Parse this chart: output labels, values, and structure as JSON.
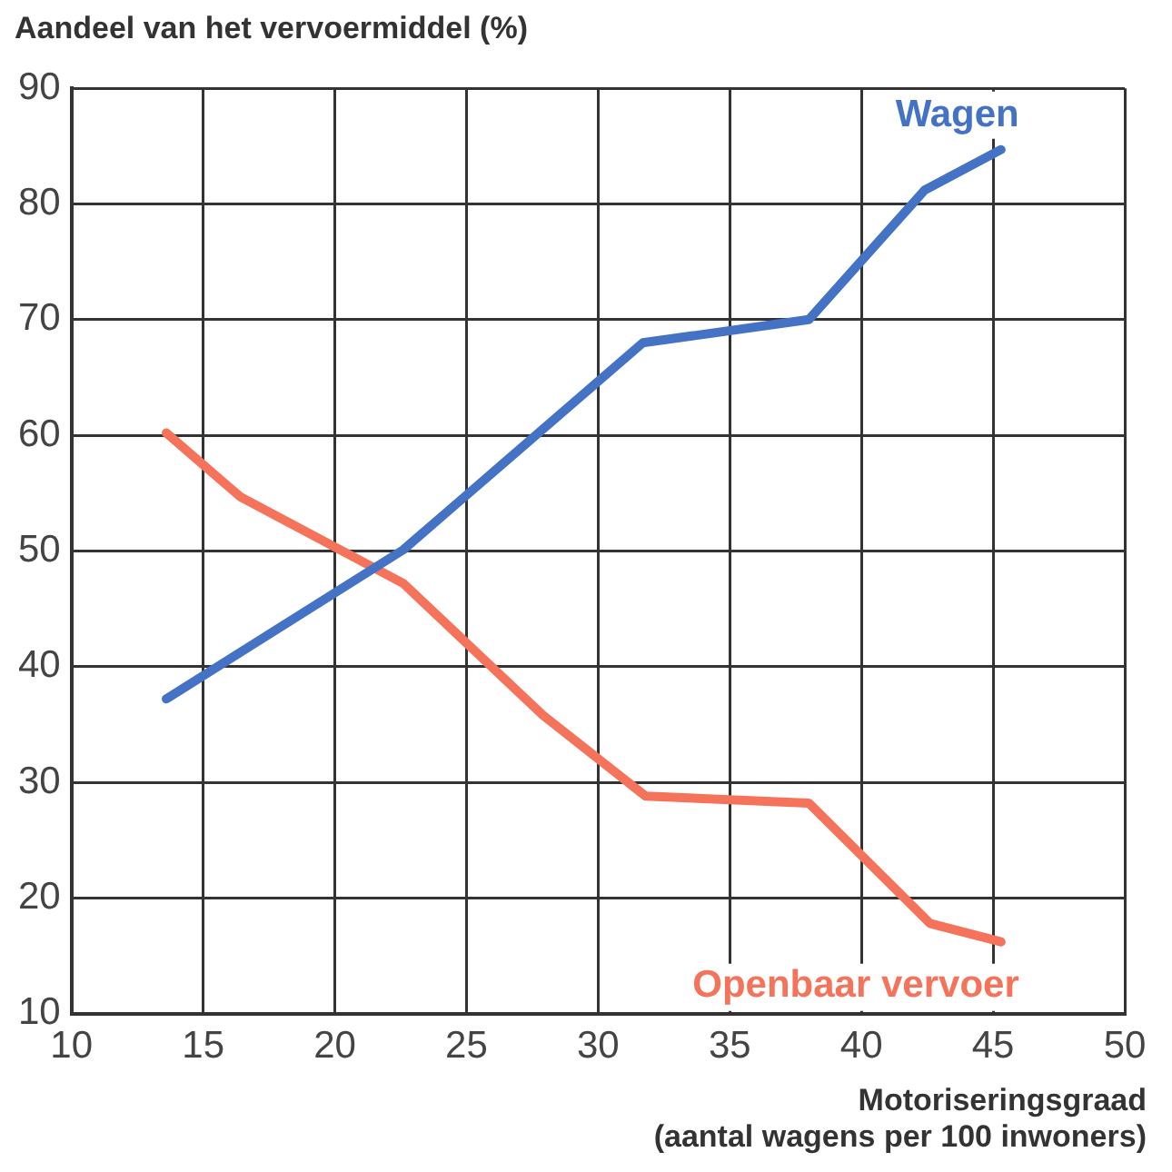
{
  "chart_data": {
    "type": "line",
    "ylabel": "Aandeel van het vervoermiddel (%)",
    "xlabel": "Motoriseringsgraad\n(aantal wagens per 100 inwoners)",
    "xlim": [
      10,
      50
    ],
    "xticks": [
      10,
      15,
      20,
      25,
      30,
      35,
      40,
      45,
      50
    ],
    "ylim": [
      10,
      90
    ],
    "yticks": [
      10,
      20,
      30,
      40,
      50,
      60,
      70,
      80,
      90
    ],
    "grid": true,
    "legend": false,
    "marker": "none",
    "line_style": "solid",
    "series": [
      {
        "name": "Wagen",
        "color": "#4472c4",
        "x": [
          13.6,
          22.6,
          31.7,
          38,
          42.4,
          45.3
        ],
        "values": [
          37.2,
          50.1,
          68,
          70,
          81.2,
          84.7
        ]
      },
      {
        "name": "Openbaar vervoer",
        "color": "#f4735a",
        "x": [
          13.6,
          16.4,
          22.6,
          27.9,
          31.8,
          38,
          42.6,
          45.3
        ],
        "values": [
          60.2,
          54.7,
          47.2,
          35.8,
          28.8,
          28.2,
          17.8,
          16.2
        ]
      }
    ]
  }
}
